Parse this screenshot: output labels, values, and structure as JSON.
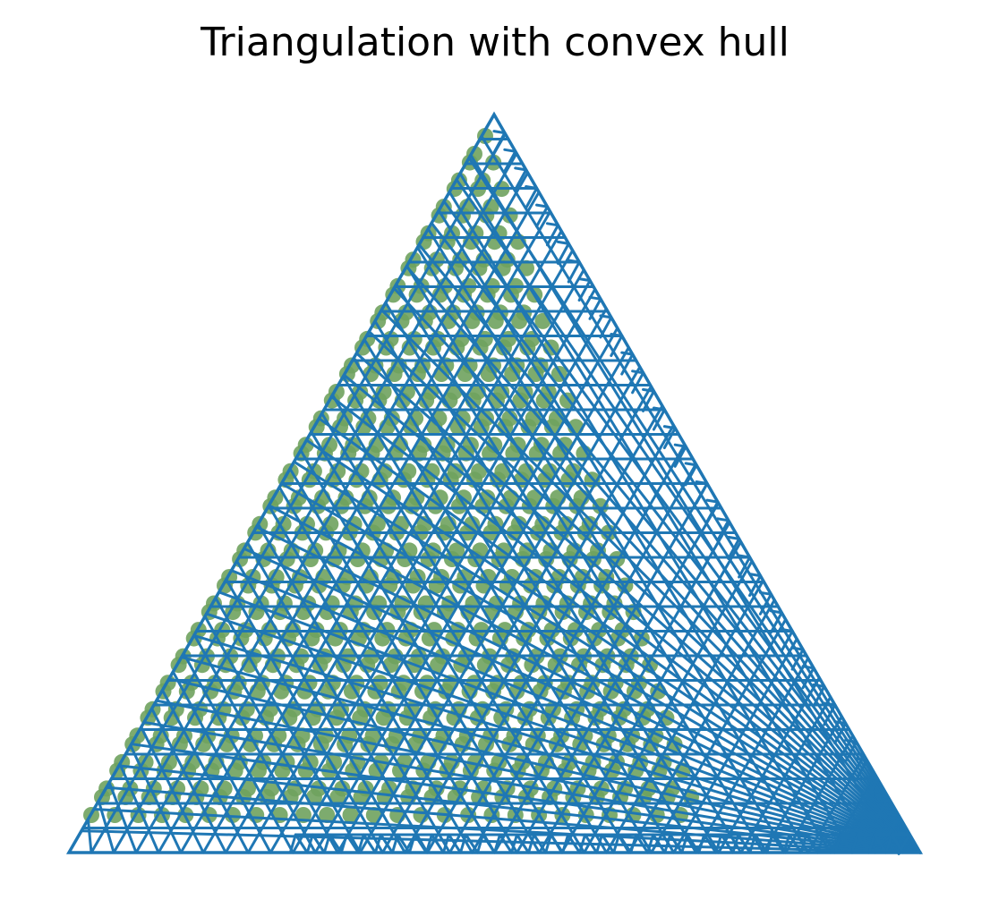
{
  "title": "Triangulation with convex hull",
  "colors": {
    "edges": "#1f77b4",
    "points": "#6fa25e",
    "background": "#ffffff"
  },
  "chart_data": {
    "type": "scatter",
    "description_of_marks": "triangular lattice of points (green) overlaid with a triangulation mesh (blue) and its convex hull",
    "lattice_rows": 26,
    "hull": "triangle",
    "grid": false,
    "axes_visible": false
  }
}
